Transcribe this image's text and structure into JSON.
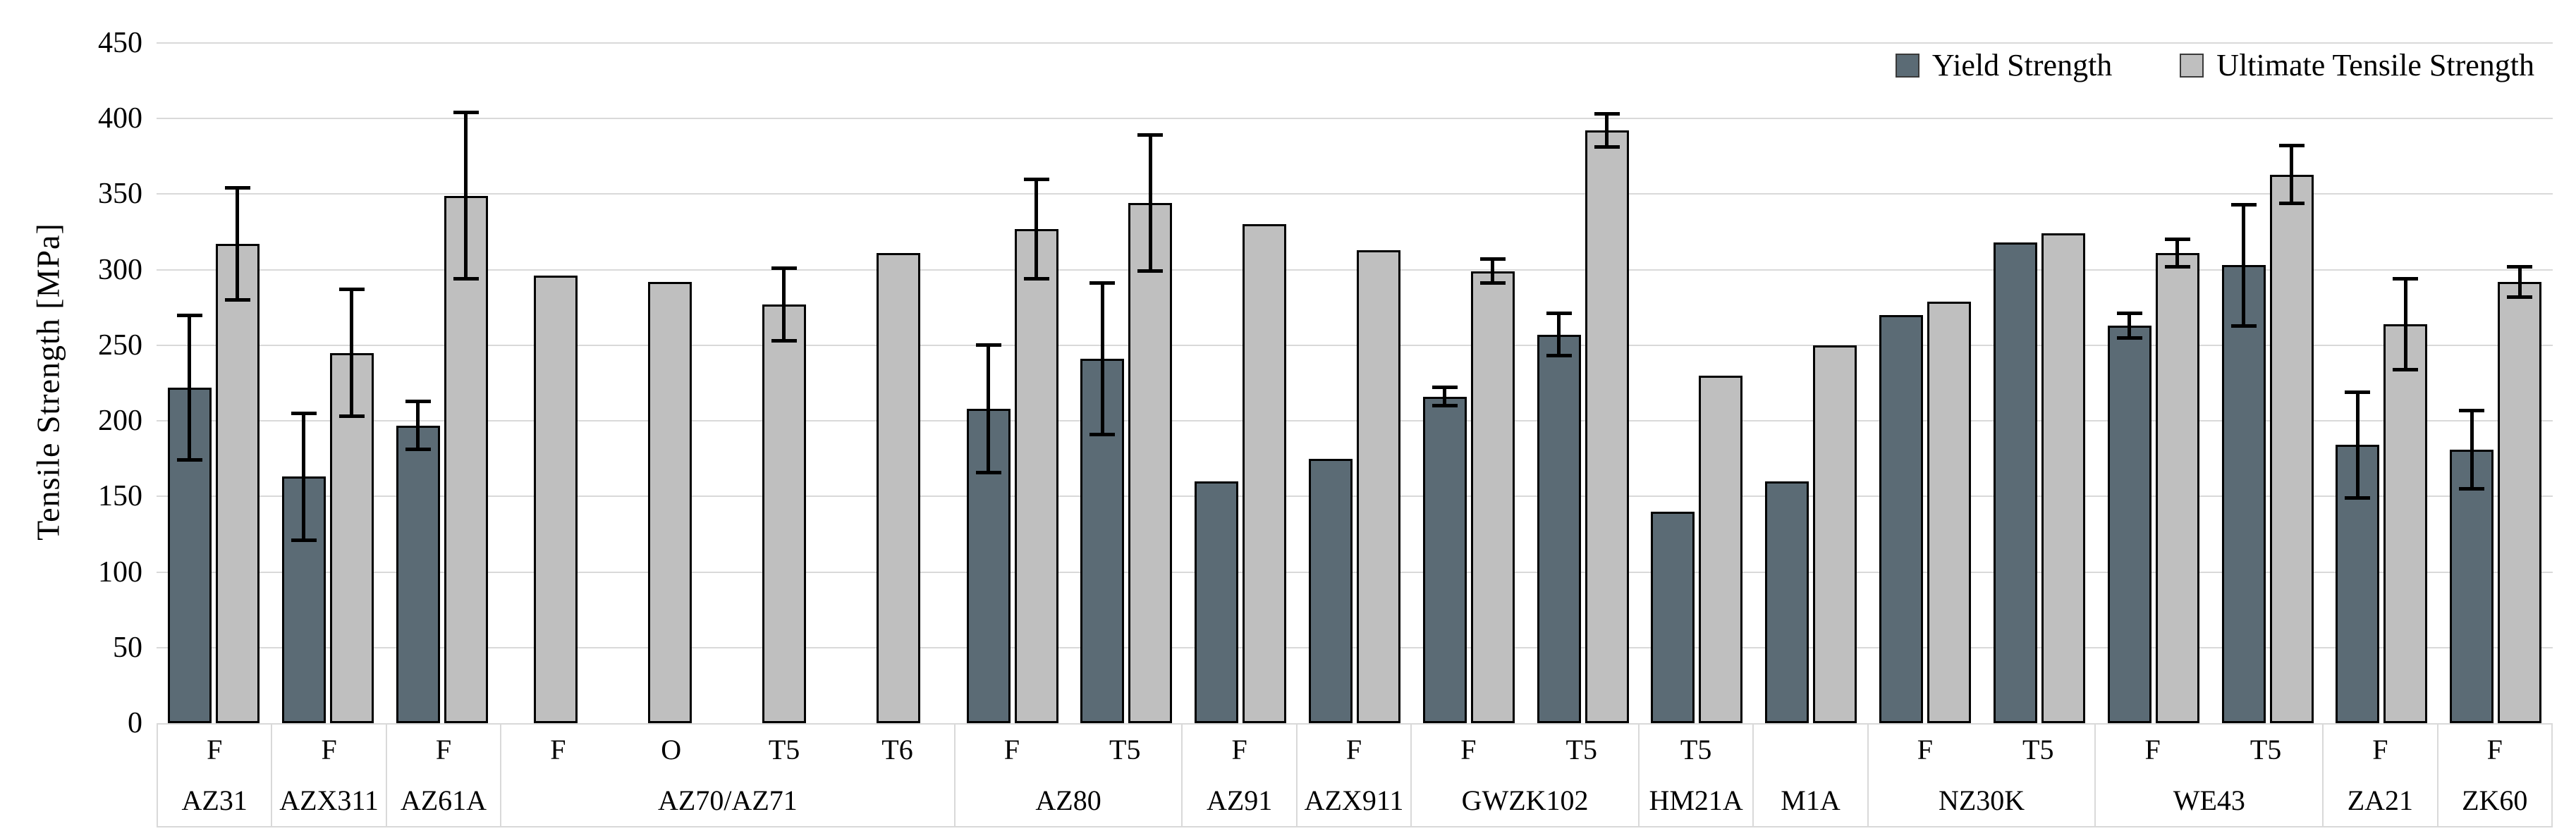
{
  "legend": {
    "yield_label": "Yield Strength",
    "uts_label": "Ultimate Tensile Strength"
  },
  "colors": {
    "yield_fill": "#5B6B75",
    "uts_fill": "#BFBFBF",
    "bar_outline": "#000000",
    "error_bar": "#000000",
    "gridline": "#D9D9D9",
    "axis_table_border": "#D9D9D9",
    "text": "#000000"
  },
  "chart_data": {
    "type": "bar",
    "title": "",
    "xlabel": "",
    "ylabel": "Tensile Strength [MPa]",
    "ylim": [
      0,
      450
    ],
    "ytick_step": 50,
    "yticks": [
      0,
      50,
      100,
      150,
      200,
      250,
      300,
      350,
      400,
      450
    ],
    "grid": "horizontal",
    "legend_position": "top-right",
    "series": [
      "Yield Strength",
      "Ultimate Tensile Strength"
    ],
    "units": "MPa",
    "groups": [
      {
        "alloy": "AZ31",
        "bars": [
          {
            "temper": "F",
            "yield": 222,
            "yield_err": 48,
            "uts": 317,
            "uts_err": 37
          }
        ]
      },
      {
        "alloy": "AZX311",
        "bars": [
          {
            "temper": "F",
            "yield": 163,
            "yield_err": 42,
            "uts": 245,
            "uts_err": 42
          }
        ]
      },
      {
        "alloy": "AZ61A",
        "bars": [
          {
            "temper": "F",
            "yield": 197,
            "yield_err": 16,
            "uts": 349,
            "uts_err": 55
          }
        ]
      },
      {
        "alloy": "AZ70/AZ71",
        "bars": [
          {
            "temper": "F",
            "uts": 296
          },
          {
            "temper": "O",
            "uts": 292
          },
          {
            "temper": "T5",
            "uts": 277,
            "uts_err": 24
          },
          {
            "temper": "T6",
            "uts": 311
          }
        ]
      },
      {
        "alloy": "AZ80",
        "bars": [
          {
            "temper": "F",
            "yield": 208,
            "yield_err": 42,
            "uts": 327,
            "uts_err": 33
          },
          {
            "temper": "T5",
            "yield": 241,
            "yield_err": 50,
            "uts": 344,
            "uts_err": 45
          }
        ]
      },
      {
        "alloy": "AZ91",
        "bars": [
          {
            "temper": "F",
            "yield": 160,
            "uts": 330
          }
        ]
      },
      {
        "alloy": "AZX911",
        "bars": [
          {
            "temper": "F",
            "yield": 175,
            "uts": 313
          }
        ]
      },
      {
        "alloy": "GWZK102",
        "bars": [
          {
            "temper": "F",
            "yield": 216,
            "yield_err": 6,
            "uts": 299,
            "uts_err": 8
          },
          {
            "temper": "T5",
            "yield": 257,
            "yield_err": 14,
            "uts": 392,
            "uts_err": 11
          }
        ]
      },
      {
        "alloy": "HM21A",
        "bars": [
          {
            "temper": "T5",
            "yield": 140,
            "uts": 230
          }
        ]
      },
      {
        "alloy": "M1A",
        "bars": [
          {
            "temper": "",
            "yield": 160,
            "uts": 250
          }
        ]
      },
      {
        "alloy": "NZ30K",
        "bars": [
          {
            "temper": "F",
            "yield": 270,
            "uts": 279
          },
          {
            "temper": "T5",
            "yield": 318,
            "uts": 324
          }
        ]
      },
      {
        "alloy": "WE43",
        "bars": [
          {
            "temper": "F",
            "yield": 263,
            "yield_err": 8,
            "uts": 311,
            "uts_err": 9
          },
          {
            "temper": "T5",
            "yield": 303,
            "yield_err": 40,
            "uts": 363,
            "uts_err": 19
          }
        ]
      },
      {
        "alloy": "ZA21",
        "bars": [
          {
            "temper": "F",
            "yield": 184,
            "yield_err": 35,
            "uts": 264,
            "uts_err": 30
          }
        ]
      },
      {
        "alloy": "ZK60",
        "bars": [
          {
            "temper": "F",
            "yield": 181,
            "yield_err": 26,
            "uts": 292,
            "uts_err": 10
          }
        ]
      }
    ]
  }
}
